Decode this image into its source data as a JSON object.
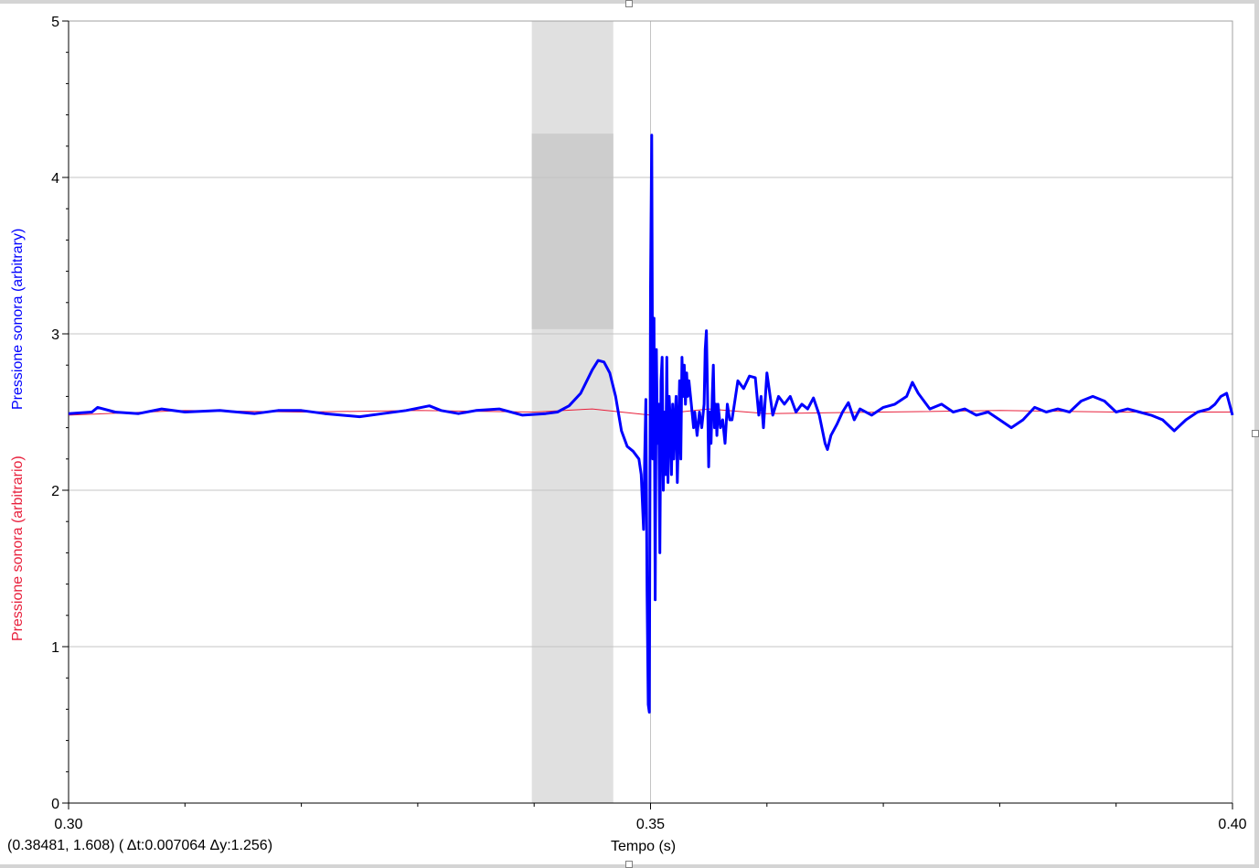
{
  "chart_data": {
    "type": "line",
    "xlabel": "Tempo (s)",
    "ylabels": [
      "Pressione sonora (arbitrary)",
      "Pressione sonora (arbitrario)"
    ],
    "xlim": [
      0.3,
      0.4
    ],
    "ylim": [
      0,
      5
    ],
    "x_ticks": [
      "0.30",
      "0.35",
      "0.40"
    ],
    "y_ticks": [
      "0",
      "1",
      "2",
      "3",
      "4",
      "5"
    ],
    "grid": true,
    "selection": {
      "x_range": [
        0.3398,
        0.3468
      ],
      "y_range": [
        3.03,
        4.28
      ]
    },
    "series": [
      {
        "name": "Pressione sonora (arbitrary)",
        "color": "#0000ff",
        "points": [
          [
            0.3,
            2.49
          ],
          [
            0.302,
            2.5
          ],
          [
            0.3025,
            2.53
          ],
          [
            0.304,
            2.5
          ],
          [
            0.306,
            2.49
          ],
          [
            0.308,
            2.52
          ],
          [
            0.31,
            2.5
          ],
          [
            0.313,
            2.51
          ],
          [
            0.316,
            2.49
          ],
          [
            0.318,
            2.51
          ],
          [
            0.32,
            2.51
          ],
          [
            0.322,
            2.49
          ],
          [
            0.325,
            2.47
          ],
          [
            0.327,
            2.49
          ],
          [
            0.329,
            2.51
          ],
          [
            0.331,
            2.54
          ],
          [
            0.332,
            2.51
          ],
          [
            0.3335,
            2.49
          ],
          [
            0.335,
            2.51
          ],
          [
            0.337,
            2.52
          ],
          [
            0.339,
            2.48
          ],
          [
            0.341,
            2.49
          ],
          [
            0.342,
            2.5
          ],
          [
            0.343,
            2.54
          ],
          [
            0.344,
            2.62
          ],
          [
            0.345,
            2.77
          ],
          [
            0.3455,
            2.83
          ],
          [
            0.346,
            2.82
          ],
          [
            0.3465,
            2.75
          ],
          [
            0.347,
            2.6
          ],
          [
            0.3475,
            2.38
          ],
          [
            0.348,
            2.28
          ],
          [
            0.3485,
            2.25
          ],
          [
            0.349,
            2.2
          ],
          [
            0.3492,
            2.1
          ],
          [
            0.3494,
            1.75
          ],
          [
            0.3495,
            2.2
          ],
          [
            0.3496,
            2.58
          ],
          [
            0.3497,
            1.35
          ],
          [
            0.3498,
            0.63
          ],
          [
            0.3499,
            0.58
          ],
          [
            0.35,
            3.3
          ],
          [
            0.3501,
            4.27
          ],
          [
            0.3502,
            2.2
          ],
          [
            0.3503,
            3.1
          ],
          [
            0.3504,
            1.3
          ],
          [
            0.3505,
            2.9
          ],
          [
            0.3506,
            2.3
          ],
          [
            0.3507,
            2.55
          ],
          [
            0.3508,
            1.6
          ],
          [
            0.3509,
            2.7
          ],
          [
            0.351,
            2.85
          ],
          [
            0.3511,
            2.0
          ],
          [
            0.3512,
            2.5
          ],
          [
            0.3513,
            2.1
          ],
          [
            0.3514,
            2.85
          ],
          [
            0.3515,
            2.05
          ],
          [
            0.3516,
            2.6
          ],
          [
            0.3517,
            2.45
          ],
          [
            0.3518,
            2.1
          ],
          [
            0.3519,
            2.55
          ],
          [
            0.352,
            2.2
          ],
          [
            0.3521,
            2.45
          ],
          [
            0.3522,
            2.6
          ],
          [
            0.3523,
            2.05
          ],
          [
            0.3524,
            2.4
          ],
          [
            0.3525,
            2.7
          ],
          [
            0.3526,
            2.2
          ],
          [
            0.3527,
            2.85
          ],
          [
            0.3528,
            2.6
          ],
          [
            0.3529,
            2.8
          ],
          [
            0.353,
            2.55
          ],
          [
            0.3531,
            2.75
          ],
          [
            0.3532,
            2.6
          ],
          [
            0.3533,
            2.7
          ],
          [
            0.3535,
            2.55
          ],
          [
            0.3537,
            2.4
          ],
          [
            0.3538,
            2.5
          ],
          [
            0.354,
            2.35
          ],
          [
            0.3542,
            2.5
          ],
          [
            0.3544,
            2.4
          ],
          [
            0.3546,
            2.55
          ],
          [
            0.3547,
            2.9
          ],
          [
            0.3548,
            3.02
          ],
          [
            0.3549,
            2.6
          ],
          [
            0.355,
            2.15
          ],
          [
            0.3551,
            2.5
          ],
          [
            0.3552,
            2.3
          ],
          [
            0.3553,
            2.6
          ],
          [
            0.3554,
            2.8
          ],
          [
            0.3555,
            2.4
          ],
          [
            0.3556,
            2.55
          ],
          [
            0.3557,
            2.35
          ],
          [
            0.3558,
            2.55
          ],
          [
            0.356,
            2.4
          ],
          [
            0.3562,
            2.45
          ],
          [
            0.3564,
            2.3
          ],
          [
            0.3566,
            2.55
          ],
          [
            0.3568,
            2.45
          ],
          [
            0.357,
            2.45
          ],
          [
            0.3572,
            2.55
          ],
          [
            0.3575,
            2.7
          ],
          [
            0.358,
            2.65
          ],
          [
            0.3585,
            2.73
          ],
          [
            0.359,
            2.72
          ],
          [
            0.3593,
            2.48
          ],
          [
            0.3595,
            2.6
          ],
          [
            0.3597,
            2.4
          ],
          [
            0.36,
            2.75
          ],
          [
            0.3605,
            2.48
          ],
          [
            0.361,
            2.6
          ],
          [
            0.3615,
            2.55
          ],
          [
            0.362,
            2.6
          ],
          [
            0.3625,
            2.5
          ],
          [
            0.363,
            2.55
          ],
          [
            0.3635,
            2.52
          ],
          [
            0.364,
            2.59
          ],
          [
            0.3645,
            2.48
          ],
          [
            0.365,
            2.3
          ],
          [
            0.3652,
            2.26
          ],
          [
            0.3655,
            2.35
          ],
          [
            0.366,
            2.42
          ],
          [
            0.3665,
            2.5
          ],
          [
            0.367,
            2.56
          ],
          [
            0.3675,
            2.45
          ],
          [
            0.368,
            2.52
          ],
          [
            0.369,
            2.48
          ],
          [
            0.37,
            2.53
          ],
          [
            0.371,
            2.55
          ],
          [
            0.372,
            2.6
          ],
          [
            0.3725,
            2.69
          ],
          [
            0.373,
            2.62
          ],
          [
            0.374,
            2.52
          ],
          [
            0.375,
            2.55
          ],
          [
            0.376,
            2.5
          ],
          [
            0.377,
            2.52
          ],
          [
            0.378,
            2.48
          ],
          [
            0.379,
            2.5
          ],
          [
            0.38,
            2.45
          ],
          [
            0.381,
            2.4
          ],
          [
            0.382,
            2.45
          ],
          [
            0.383,
            2.53
          ],
          [
            0.384,
            2.5
          ],
          [
            0.385,
            2.52
          ],
          [
            0.386,
            2.5
          ],
          [
            0.387,
            2.57
          ],
          [
            0.388,
            2.6
          ],
          [
            0.389,
            2.57
          ],
          [
            0.39,
            2.5
          ],
          [
            0.391,
            2.52
          ],
          [
            0.392,
            2.5
          ],
          [
            0.393,
            2.48
          ],
          [
            0.394,
            2.45
          ],
          [
            0.395,
            2.38
          ],
          [
            0.396,
            2.45
          ],
          [
            0.397,
            2.5
          ],
          [
            0.398,
            2.52
          ],
          [
            0.3985,
            2.55
          ],
          [
            0.399,
            2.6
          ],
          [
            0.3995,
            2.62
          ],
          [
            0.4,
            2.48
          ]
        ]
      },
      {
        "name": "Pressione sonora (arbitrario)",
        "color": "#e8203c",
        "points": [
          [
            0.3,
            2.48
          ],
          [
            0.31,
            2.51
          ],
          [
            0.32,
            2.5
          ],
          [
            0.33,
            2.51
          ],
          [
            0.34,
            2.5
          ],
          [
            0.345,
            2.52
          ],
          [
            0.35,
            2.48
          ],
          [
            0.355,
            2.52
          ],
          [
            0.36,
            2.49
          ],
          [
            0.37,
            2.5
          ],
          [
            0.38,
            2.51
          ],
          [
            0.39,
            2.5
          ],
          [
            0.4,
            2.5
          ]
        ]
      }
    ]
  },
  "status": {
    "cursor_readout": "(0.38481, 1.608) ( Δt:0.007064  Δy:1.256)"
  }
}
